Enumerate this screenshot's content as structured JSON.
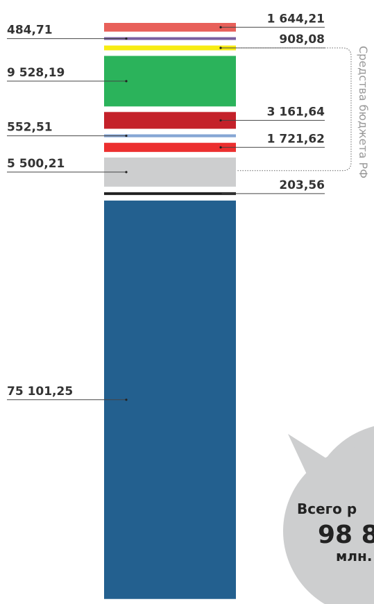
{
  "chart_data": {
    "type": "stacked_bar",
    "values": [
      1644.21,
      484.71,
      908.08,
      9528.19,
      3161.64,
      552.51,
      1721.62,
      5500.21,
      203.56,
      75101.25
    ],
    "value_labels": [
      "1 644,21",
      "484,71",
      "908,08",
      "9 528,19",
      "3 161,64",
      "552,51",
      "1 721,62",
      "5 500,21",
      "203,56",
      "75 101,25"
    ],
    "colors": [
      "#e8605a",
      "#7a5fa0",
      "#f7ec13",
      "#2bb35b",
      "#c4212a",
      "#86a6d4",
      "#ec2f2f",
      "#cdcecf",
      "#222222",
      "#23608f"
    ],
    "label_sides": [
      "right",
      "left",
      "right",
      "left",
      "right",
      "left",
      "right",
      "left",
      "right",
      "left"
    ],
    "annotation": "Средства бюджета РФ",
    "bubble": [
      "Всего р",
      "98 8",
      "млн."
    ]
  }
}
